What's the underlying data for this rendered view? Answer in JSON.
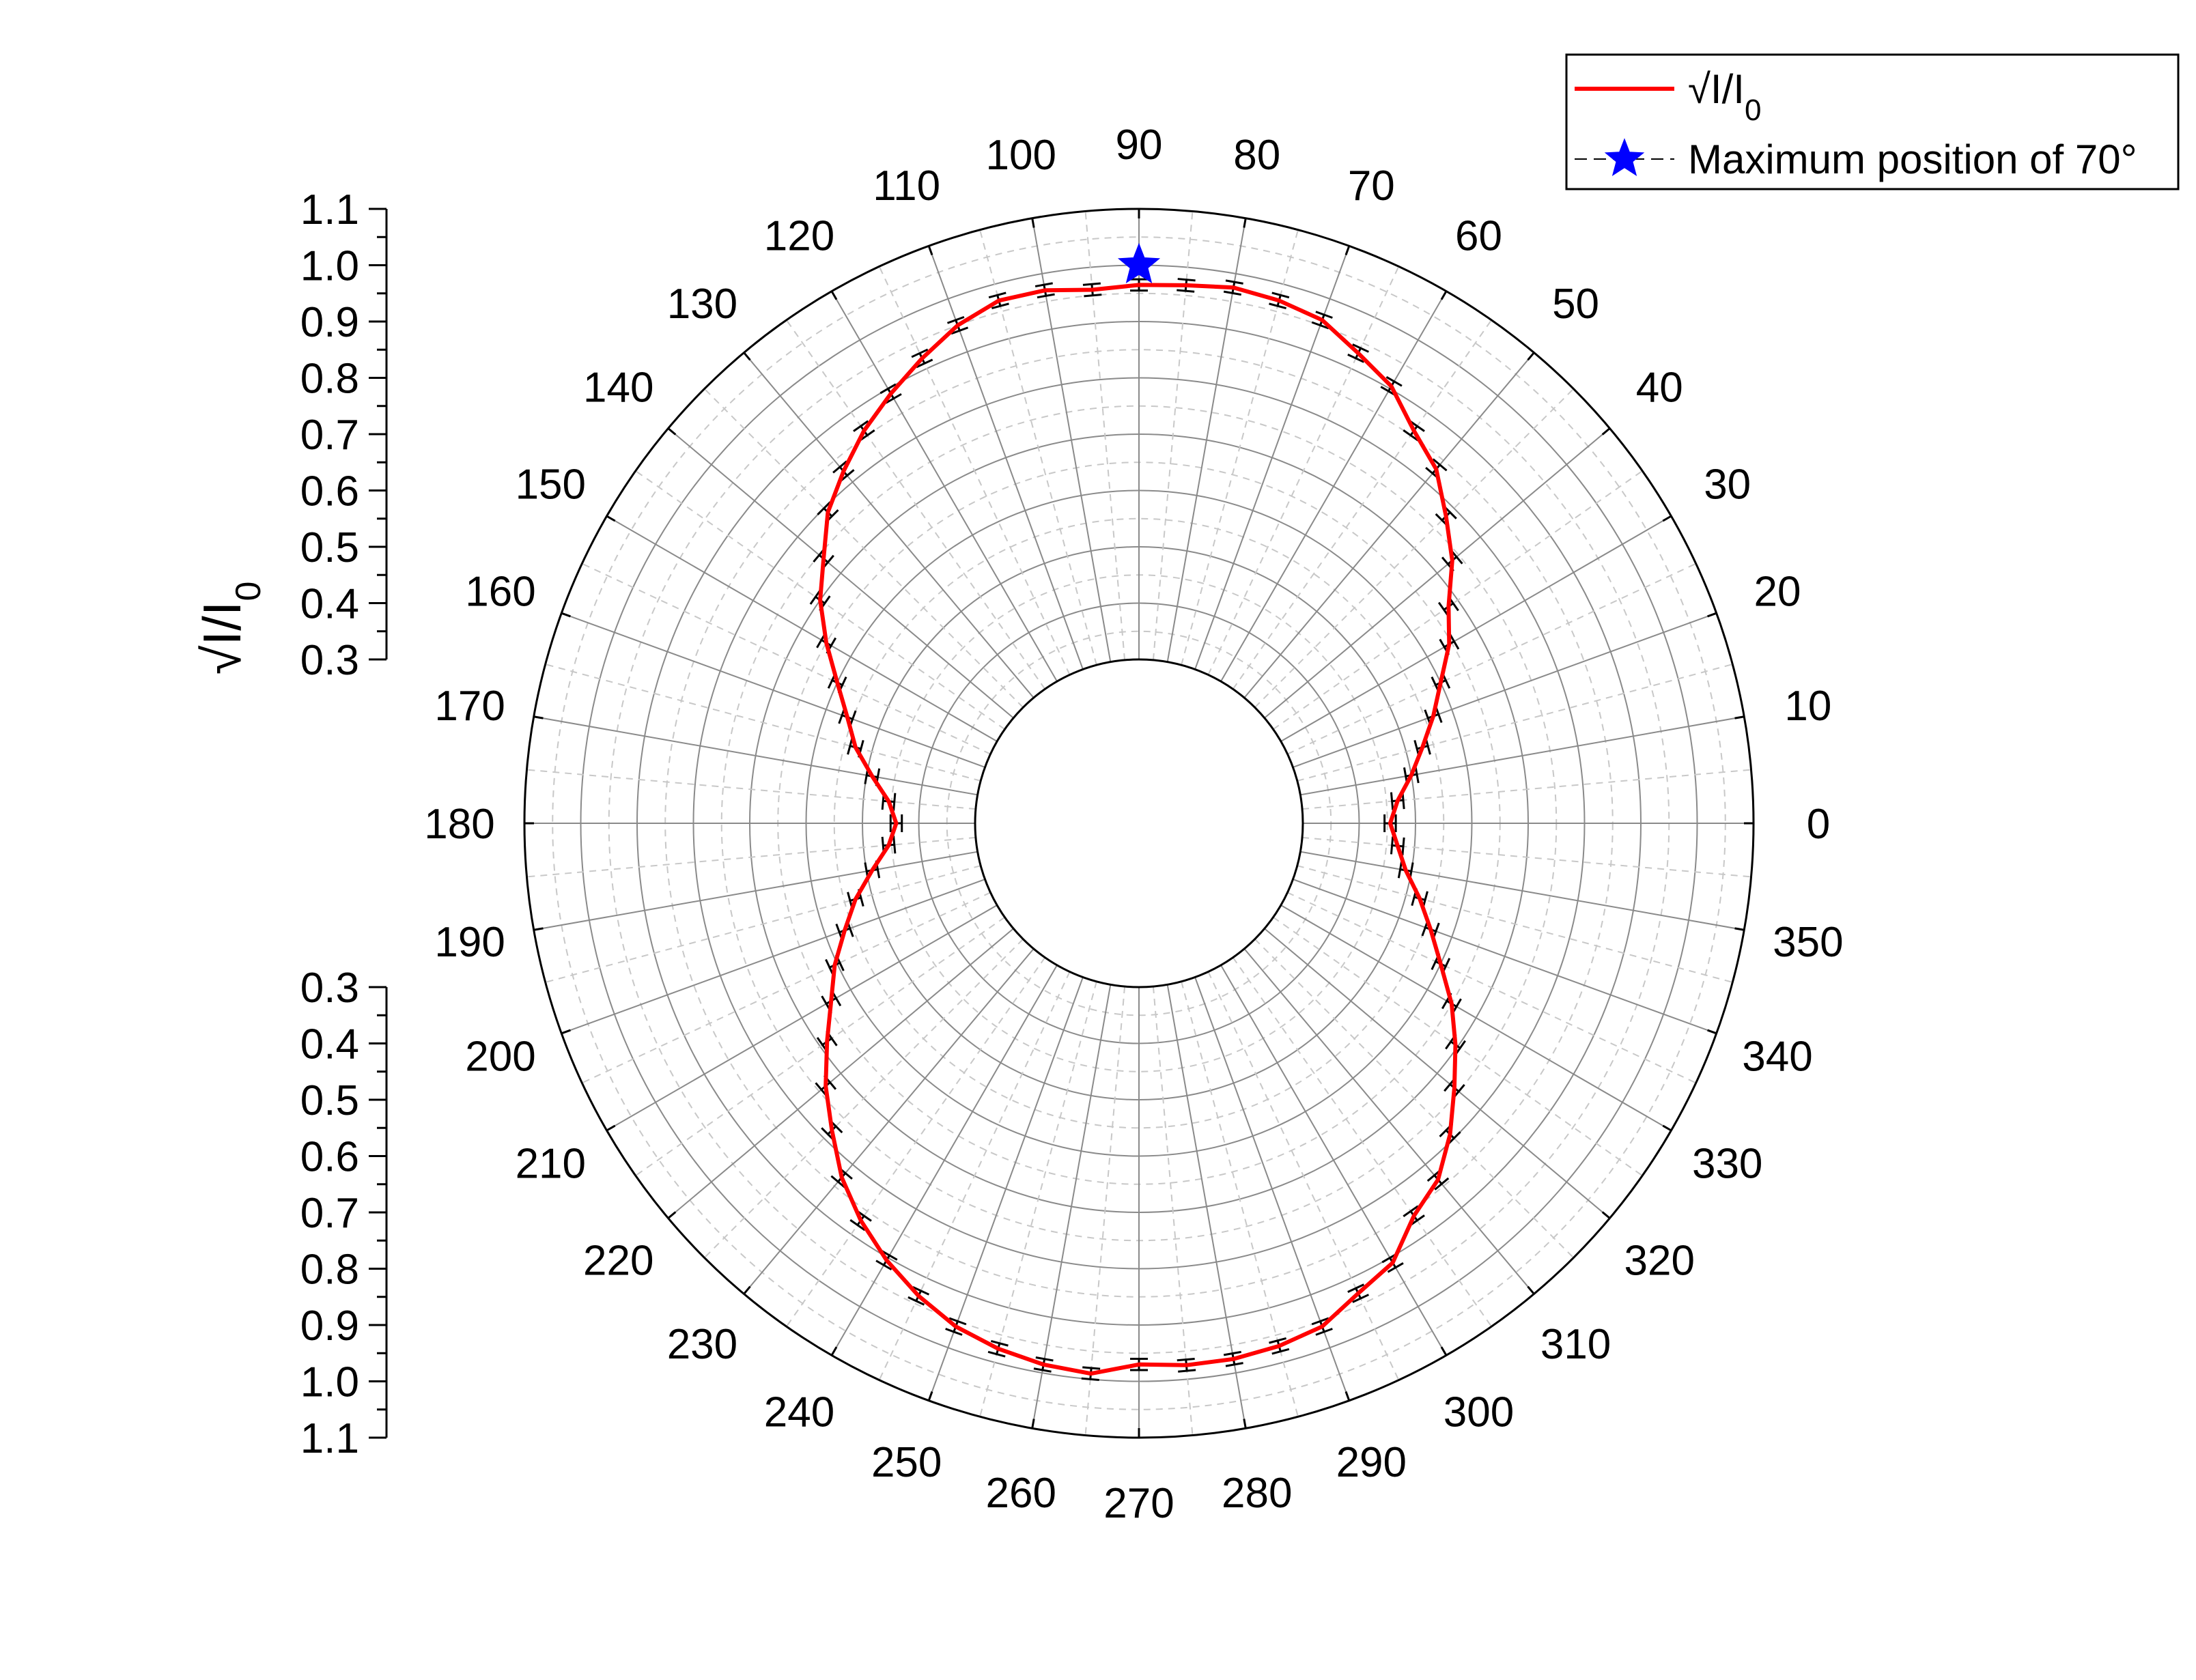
{
  "chart_data": {
    "type": "line",
    "coordinate_system": "polar",
    "angle_unit": "degrees",
    "radial_axis": {
      "title": "√I/I0",
      "title_main": "√I/I",
      "title_subscript": "0",
      "range": [
        0.3,
        1.1
      ],
      "tick_labels": [
        "0.3",
        "0.4",
        "0.5",
        "0.6",
        "0.7",
        "0.8",
        "0.9",
        "1.0",
        "1.1"
      ]
    },
    "angular_axis": {
      "tick_labels": [
        "0",
        "10",
        "20",
        "30",
        "40",
        "50",
        "60",
        "70",
        "80",
        "90",
        "100",
        "110",
        "120",
        "130",
        "140",
        "150",
        "160",
        "170",
        "180",
        "190",
        "200",
        "210",
        "220",
        "230",
        "240",
        "250",
        "260",
        "270",
        "280",
        "290",
        "300",
        "310",
        "320",
        "330",
        "340",
        "350"
      ]
    },
    "grid": true,
    "legend": {
      "placement": "top-right",
      "entries": [
        {
          "label": "√I/I0",
          "label_main": "√I/I",
          "label_subscript": "0",
          "color": "#ff0000",
          "marker": "line"
        },
        {
          "label": "Maximum position of 70°",
          "color": "#0000ff",
          "marker": "star"
        }
      ]
    },
    "series": [
      {
        "name": "√I/I0",
        "color": "#ff0000",
        "angles": [
          0,
          5,
          10,
          15,
          20,
          25,
          30,
          35,
          40,
          45,
          50,
          55,
          60,
          65,
          70,
          75,
          80,
          85,
          90,
          95,
          100,
          105,
          110,
          115,
          120,
          125,
          130,
          135,
          140,
          145,
          150,
          155,
          160,
          165,
          170,
          175,
          180,
          185,
          190,
          195,
          200,
          205,
          210,
          215,
          220,
          225,
          230,
          235,
          240,
          245,
          250,
          255,
          260,
          265,
          270,
          275,
          280,
          285,
          290,
          295,
          300,
          305,
          310,
          315,
          320,
          325,
          330,
          335,
          340,
          345,
          350,
          355
        ],
        "values": [
          0.455,
          0.47,
          0.5,
          0.53,
          0.565,
          0.6,
          0.645,
          0.68,
          0.735,
          0.78,
          0.83,
          0.86,
          0.905,
          0.93,
          0.96,
          0.97,
          0.975,
          0.968,
          0.965,
          0.96,
          0.97,
          0.97,
          0.95,
          0.92,
          0.89,
          0.86,
          0.825,
          0.79,
          0.74,
          0.7,
          0.65,
          0.6,
          0.56,
          0.53,
          0.49,
          0.455,
          0.44,
          0.455,
          0.49,
          0.53,
          0.565,
          0.605,
          0.64,
          0.685,
          0.735,
          0.78,
          0.83,
          0.87,
          0.905,
          0.935,
          0.96,
          0.975,
          0.985,
          0.99,
          0.97,
          0.975,
          0.975,
          0.97,
          0.96,
          0.93,
          0.91,
          0.86,
          0.835,
          0.79,
          0.74,
          0.695,
          0.65,
          0.6,
          0.56,
          0.525,
          0.49,
          0.47
        ],
        "error": 0.01
      },
      {
        "name": "Maximum position of 70°",
        "color": "#0000ff",
        "marker": "star",
        "angles": [
          90
        ],
        "values": [
          1.0
        ]
      }
    ]
  }
}
